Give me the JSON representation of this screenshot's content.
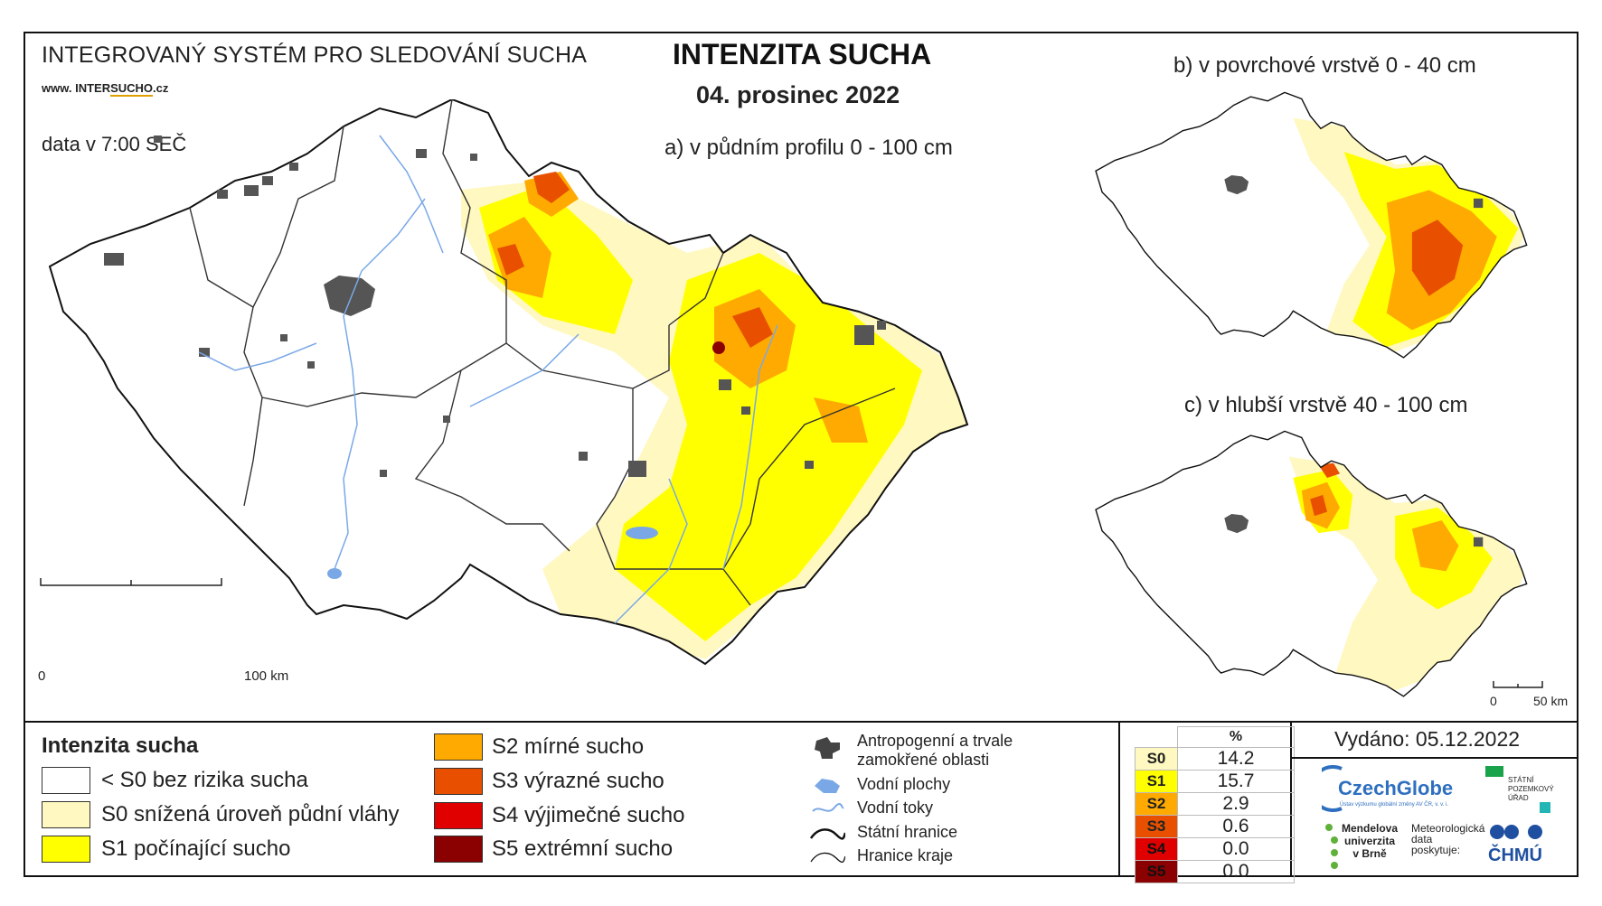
{
  "header": {
    "system_title": "INTEGROVANÝ SYSTÉM PRO SLEDOVÁNÍ SUCHA",
    "website_prefix": "www. INTER",
    "website_brand": "SUCHO",
    "website_suffix": ".cz",
    "data_time": "data v 7:00 SEČ",
    "main_title": "INTENZITA SUCHA",
    "date": "04. prosinec 2022"
  },
  "maps": {
    "a_label": "a) v půdním profilu 0 - 100 cm",
    "b_label": "b) v povrchové vrstvě 0 - 40 cm",
    "c_label": "c) v hlubší vrstvě 40 - 100 cm",
    "scale_main_start": "0",
    "scale_main_end": "100 km",
    "scale_small_start": "0",
    "scale_small_end": "50 km"
  },
  "legend": {
    "title": "Intenzita sucha",
    "classes": [
      {
        "label": "< S0 bez rizika sucha",
        "color": "#ffffff"
      },
      {
        "label": "S0 snížená úroveň půdní vláhy",
        "color": "#fff8c0"
      },
      {
        "label": "S1 počínající sucho",
        "color": "#ffff00"
      },
      {
        "label": "S2 mírné sucho",
        "color": "#ffaa00"
      },
      {
        "label": "S3 výrazné sucho",
        "color": "#e85000"
      },
      {
        "label": "S4 výjimečné sucho",
        "color": "#e00000"
      },
      {
        "label": "S5 extrémní sucho",
        "color": "#8b0000"
      }
    ],
    "symbols": [
      {
        "label": "Antropogenní a trvale zamokřené oblasti",
        "icon": "urban-area-icon"
      },
      {
        "label": "Vodní plochy",
        "icon": "water-body-icon"
      },
      {
        "label": "Vodní toky",
        "icon": "river-icon"
      },
      {
        "label": "Státní hranice",
        "icon": "state-border-icon"
      },
      {
        "label": "Hranice kraje",
        "icon": "region-border-icon"
      }
    ]
  },
  "stats": {
    "header": "%",
    "rows": [
      {
        "cls": "S0",
        "value": "14.2",
        "color": "#fff8c0"
      },
      {
        "cls": "S1",
        "value": "15.7",
        "color": "#ffff00"
      },
      {
        "cls": "S2",
        "value": "2.9",
        "color": "#ffaa00"
      },
      {
        "cls": "S3",
        "value": "0.6",
        "color": "#e85000"
      },
      {
        "cls": "S4",
        "value": "0.0",
        "color": "#e00000"
      },
      {
        "cls": "S5",
        "value": "0.0",
        "color": "#8b0000"
      }
    ]
  },
  "issued": "Vydáno: 05.12.2022",
  "logos": {
    "czechglobe": "CzechGlobe",
    "czechglobe_sub": "Ústav výzkumu globální změny AV ČR, v. v. i.",
    "spu": "STÁTNÍ POZEMKOVÝ ÚŘAD",
    "mendel_1": "Mendelova",
    "mendel_2": "univerzita",
    "mendel_3": "v Brně",
    "meteo": "Meteorologická data poskytuje:",
    "chmu": "ČHMÚ"
  }
}
